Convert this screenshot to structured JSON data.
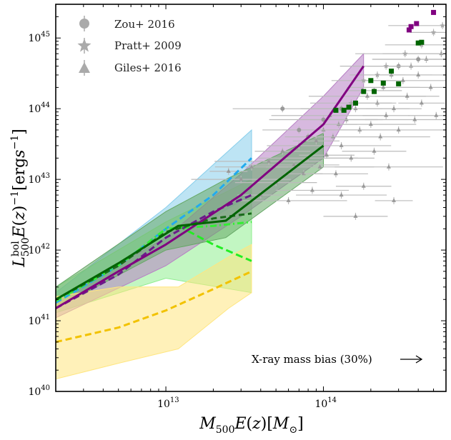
{
  "chart_data": {
    "type": "scatter",
    "xscale": "log",
    "yscale": "log",
    "xlim": [
      2000000000000.0,
      600000000000000.0
    ],
    "ylim": [
      1e+40,
      3e+45
    ],
    "xlabel": "M500E(z)[M⊙]",
    "ylabel": "L500bolE(z)−1[ergs−1]",
    "x_ticks": [
      {
        "value": 10000000000000.0,
        "mant": "10",
        "exp": "13"
      },
      {
        "value": 100000000000000.0,
        "mant": "10",
        "exp": "14"
      }
    ],
    "y_ticks": [
      {
        "value": 1e+40,
        "mant": "10",
        "exp": "40"
      },
      {
        "value": 1e+41,
        "mant": "10",
        "exp": "41"
      },
      {
        "value": 1e+42,
        "mant": "10",
        "exp": "42"
      },
      {
        "value": 1e+43,
        "mant": "10",
        "exp": "43"
      },
      {
        "value": 1e+44,
        "mant": "10",
        "exp": "44"
      },
      {
        "value": 1e+45,
        "mant": "10",
        "exp": "45"
      }
    ],
    "legend": {
      "position": "top-left",
      "entries": [
        {
          "label": "Zou+ 2016",
          "marker": "circle"
        },
        {
          "label": "Pratt+ 2009",
          "marker": "star"
        },
        {
          "label": "Giles+ 2016",
          "marker": "triangle"
        }
      ]
    },
    "annotation": {
      "text": "X-ray mass bias (30%)",
      "arrow": "right"
    },
    "bands": [
      {
        "name": "cyan band",
        "color": "#87ceeb",
        "x": [
          2000000000000.0,
          10000000000000.0,
          35000000000000.0
        ],
        "low": [
          1.5e+41,
          1.2e+42,
          6e+42
        ],
        "high": [
          2.5e+41,
          4e+42,
          5e+43
        ]
      },
      {
        "name": "light-green band",
        "color": "#90ee90",
        "x": [
          2000000000000.0,
          10000000000000.0,
          35000000000000.0
        ],
        "low": [
          1.3e+41,
          4e+41,
          2.5e+41
        ],
        "high": [
          3e+41,
          2.5e+42,
          1e+43
        ]
      },
      {
        "name": "purple band",
        "color": "#b77fc4",
        "x": [
          2000000000000.0,
          10000000000000.0,
          30000000000000.0,
          100000000000000.0,
          180000000000000.0
        ],
        "low": [
          1.1e+41,
          6e+41,
          3e+42,
          2e+43,
          2e+44
        ],
        "high": [
          2e+41,
          1.5e+42,
          1.2e+43,
          1.5e+44,
          6e+44
        ]
      },
      {
        "name": "dark-green band",
        "color": "#66a866",
        "x": [
          2000000000000.0,
          10000000000000.0,
          24000000000000.0,
          100000000000000.0
        ],
        "low": [
          1.5e+41,
          1e+42,
          1.5e+42,
          1.5e+43
        ],
        "high": [
          3e+41,
          3.5e+42,
          1e+43,
          4.5e+43
        ]
      },
      {
        "name": "yellow band",
        "color": "#ffe680",
        "x": [
          2000000000000.0,
          5000000000000.0,
          12000000000000.0,
          25000000000000.0,
          35000000000000.0
        ],
        "low": [
          1.5e+40,
          2.5e+40,
          4e+40,
          1.5e+41,
          2.5e+41
        ],
        "high": [
          2.2e+41,
          3e+41,
          3e+41,
          8e+41,
          1.2e+42
        ]
      }
    ],
    "series": [
      {
        "name": "cyan dashed",
        "color": "#22aaee",
        "dash": "9,5",
        "x": [
          2000000000000.0,
          5000000000000.0,
          10000000000000.0,
          20000000000000.0,
          35000000000000.0
        ],
        "y": [
          1.8e+41,
          6e+41,
          2e+42,
          6e+42,
          2e+43
        ]
      },
      {
        "name": "light-green dash-dot",
        "color": "#33ee33",
        "dash": "9,4,2,4",
        "x": [
          2000000000000.0,
          5000000000000.0,
          10000000000000.0,
          20000000000000.0,
          35000000000000.0
        ],
        "y": [
          1.9e+41,
          6e+41,
          2e+42,
          2.2e+42,
          2.5e+42
        ]
      },
      {
        "name": "light-green dashed",
        "color": "#22ee22",
        "dash": "10,5",
        "x": [
          12000000000000.0,
          20000000000000.0,
          35000000000000.0
        ],
        "y": [
          2.2e+42,
          1.2e+42,
          7e+41
        ]
      },
      {
        "name": "purple dashed",
        "color": "#6a1b8a",
        "dash": "9,5",
        "x": [
          2000000000000.0,
          5000000000000.0,
          10000000000000.0,
          20000000000000.0,
          35000000000000.0
        ],
        "y": [
          1.5e+41,
          4.5e+41,
          1.5e+42,
          3.5e+42,
          6e+42
        ]
      },
      {
        "name": "dark-green dashed",
        "color": "#1a6b1a",
        "dash": "8,5",
        "x": [
          2000000000000.0,
          5000000000000.0,
          10000000000000.0,
          20000000000000.0,
          35000000000000.0
        ],
        "y": [
          2e+41,
          6e+41,
          1.8e+42,
          2.8e+42,
          3.3e+42
        ]
      },
      {
        "name": "purple solid",
        "color": "#800080",
        "dash": "",
        "x": [
          2000000000000.0,
          5000000000000.0,
          10000000000000.0,
          30000000000000.0,
          100000000000000.0,
          180000000000000.0
        ],
        "y": [
          1.5e+41,
          5e+41,
          1.2e+42,
          6e+42,
          6e+43,
          4e+44
        ]
      },
      {
        "name": "dark-green solid",
        "color": "#006400",
        "dash": "",
        "x": [
          2000000000000.0,
          5000000000000.0,
          12000000000000.0,
          24000000000000.0,
          100000000000000.0
        ],
        "y": [
          2e+41,
          6.5e+41,
          2.2e+42,
          2.6e+42,
          3e+43
        ]
      },
      {
        "name": "yellow dashed",
        "color": "#f2c200",
        "dash": "9,5",
        "x": [
          2000000000000.0,
          5000000000000.0,
          10000000000000.0,
          20000000000000.0,
          35000000000000.0
        ],
        "y": [
          5e+40,
          8e+40,
          1.4e+41,
          2.8e+41,
          5e+41
        ]
      }
    ],
    "gray_points": [
      {
        "x": 25000000000000.0,
        "y": 1.3e+43,
        "m": "t"
      },
      {
        "x": 30000000000000.0,
        "y": 1e+43,
        "m": "t"
      },
      {
        "x": 35000000000000.0,
        "y": 1.5e+43,
        "m": "t"
      },
      {
        "x": 40000000000000.0,
        "y": 6e+42,
        "m": "t"
      },
      {
        "x": 45000000000000.0,
        "y": 1.8e+43,
        "m": "t"
      },
      {
        "x": 50000000000000.0,
        "y": 9e+42,
        "m": "t"
      },
      {
        "x": 55000000000000.0,
        "y": 2.5e+43,
        "m": "t"
      },
      {
        "x": 60000000000000.0,
        "y": 5e+42,
        "m": "t"
      },
      {
        "x": 65000000000000.0,
        "y": 1.6e+43,
        "m": "t"
      },
      {
        "x": 70000000000000.0,
        "y": 3e+43,
        "m": "t"
      },
      {
        "x": 75000000000000.0,
        "y": 1.2e+43,
        "m": "t"
      },
      {
        "x": 80000000000000.0,
        "y": 2e+43,
        "m": "t"
      },
      {
        "x": 85000000000000.0,
        "y": 7e+42,
        "m": "t"
      },
      {
        "x": 90000000000000.0,
        "y": 3.5e+43,
        "m": "t"
      },
      {
        "x": 95000000000000.0,
        "y": 1.5e+43,
        "m": "t"
      },
      {
        "x": 100000000000000.0,
        "y": 5e+43,
        "m": "t"
      },
      {
        "x": 105000000000000.0,
        "y": 2.2e+43,
        "m": "t"
      },
      {
        "x": 110000000000000.0,
        "y": 8e+43,
        "m": "t"
      },
      {
        "x": 115000000000000.0,
        "y": 4e+43,
        "m": "t"
      },
      {
        "x": 120000000000000.0,
        "y": 1.2e+43,
        "m": "t"
      },
      {
        "x": 125000000000000.0,
        "y": 6e+43,
        "m": "t"
      },
      {
        "x": 130000000000000.0,
        "y": 3e+43,
        "m": "t"
      },
      {
        "x": 140000000000000.0,
        "y": 7e+43,
        "m": "t"
      },
      {
        "x": 150000000000000.0,
        "y": 2e+43,
        "m": "t"
      },
      {
        "x": 160000000000000.0,
        "y": 1e+44,
        "m": "t"
      },
      {
        "x": 170000000000000.0,
        "y": 5e+43,
        "m": "t"
      },
      {
        "x": 180000000000000.0,
        "y": 8e+42,
        "m": "t"
      },
      {
        "x": 190000000000000.0,
        "y": 1.5e+44,
        "m": "t"
      },
      {
        "x": 200000000000000.0,
        "y": 6e+43,
        "m": "t"
      },
      {
        "x": 210000000000000.0,
        "y": 2.5e+43,
        "m": "t"
      },
      {
        "x": 220000000000000.0,
        "y": 1.2e+44,
        "m": "t"
      },
      {
        "x": 230000000000000.0,
        "y": 4e+43,
        "m": "t"
      },
      {
        "x": 240000000000000.0,
        "y": 2e+44,
        "m": "t"
      },
      {
        "x": 250000000000000.0,
        "y": 8e+43,
        "m": "t"
      },
      {
        "x": 260000000000000.0,
        "y": 1.5e+43,
        "m": "t"
      },
      {
        "x": 270000000000000.0,
        "y": 3e+44,
        "m": "t"
      },
      {
        "x": 280000000000000.0,
        "y": 1e+44,
        "m": "t"
      },
      {
        "x": 300000000000000.0,
        "y": 5e+43,
        "m": "t"
      },
      {
        "x": 320000000000000.0,
        "y": 2.5e+44,
        "m": "t"
      },
      {
        "x": 340000000000000.0,
        "y": 1.5e+44,
        "m": "t"
      },
      {
        "x": 360000000000000.0,
        "y": 4e+44,
        "m": "t"
      },
      {
        "x": 380000000000000.0,
        "y": 7e+43,
        "m": "t"
      },
      {
        "x": 400000000000000.0,
        "y": 3e+44,
        "m": "t"
      },
      {
        "x": 420000000000000.0,
        "y": 1.2e+44,
        "m": "t"
      },
      {
        "x": 450000000000000.0,
        "y": 5e+44,
        "m": "t"
      },
      {
        "x": 480000000000000.0,
        "y": 2e+44,
        "m": "t"
      },
      {
        "x": 520000000000000.0,
        "y": 8e+43,
        "m": "t"
      },
      {
        "x": 560000000000000.0,
        "y": 6e+44,
        "m": "t"
      },
      {
        "x": 130000000000000.0,
        "y": 6e+42,
        "m": "t"
      },
      {
        "x": 160000000000000.0,
        "y": 3e+42,
        "m": "t"
      },
      {
        "x": 280000000000000.0,
        "y": 5e+42,
        "m": "t"
      },
      {
        "x": 55000000000000.0,
        "y": 1e+44,
        "m": "c"
      },
      {
        "x": 70000000000000.0,
        "y": 5e+43,
        "m": "c"
      },
      {
        "x": 80000000000000.0,
        "y": 4e+43,
        "m": "c"
      },
      {
        "x": 100000000000000.0,
        "y": 7e+43,
        "m": "c"
      },
      {
        "x": 130000000000000.0,
        "y": 1e+44,
        "m": "c"
      },
      {
        "x": 210000000000000.0,
        "y": 1.8e+44,
        "m": "c"
      },
      {
        "x": 300000000000000.0,
        "y": 4e+44,
        "m": "c"
      },
      {
        "x": 400000000000000.0,
        "y": 5e+44,
        "m": "c"
      },
      {
        "x": 180000000000000.0,
        "y": 2.5e+44,
        "m": "s"
      },
      {
        "x": 250000000000000.0,
        "y": 4e+44,
        "m": "s"
      },
      {
        "x": 330000000000000.0,
        "y": 6e+44,
        "m": "s"
      },
      {
        "x": 420000000000000.0,
        "y": 8e+44,
        "m": "s"
      },
      {
        "x": 500000000000000.0,
        "y": 1.2e+45,
        "m": "s"
      },
      {
        "x": 570000000000000.0,
        "y": 1.5e+45,
        "m": "s"
      },
      {
        "x": 150000000000000.0,
        "y": 1.2e+44,
        "m": "s"
      },
      {
        "x": 220000000000000.0,
        "y": 3e+44,
        "m": "s"
      }
    ],
    "purple_squares": [
      {
        "x": 350000000000000.0,
        "y": 1.3e+45
      },
      {
        "x": 360000000000000.0,
        "y": 1.45e+45
      },
      {
        "x": 390000000000000.0,
        "y": 1.6e+45
      },
      {
        "x": 500000000000000.0,
        "y": 2.3e+45
      }
    ],
    "green_squares": [
      {
        "x": 120000000000000.0,
        "y": 9.5e+43
      },
      {
        "x": 135000000000000.0,
        "y": 9.5e+43
      },
      {
        "x": 145000000000000.0,
        "y": 1.05e+44
      },
      {
        "x": 160000000000000.0,
        "y": 1.2e+44
      },
      {
        "x": 180000000000000.0,
        "y": 1.75e+44
      },
      {
        "x": 200000000000000.0,
        "y": 2.5e+44
      },
      {
        "x": 210000000000000.0,
        "y": 1.75e+44
      },
      {
        "x": 240000000000000.0,
        "y": 2.3e+44
      },
      {
        "x": 270000000000000.0,
        "y": 3.4e+44
      },
      {
        "x": 300000000000000.0,
        "y": 2.25e+44
      },
      {
        "x": 400000000000000.0,
        "y": 8.5e+44
      },
      {
        "x": 420000000000000.0,
        "y": 8.7e+44
      }
    ]
  }
}
